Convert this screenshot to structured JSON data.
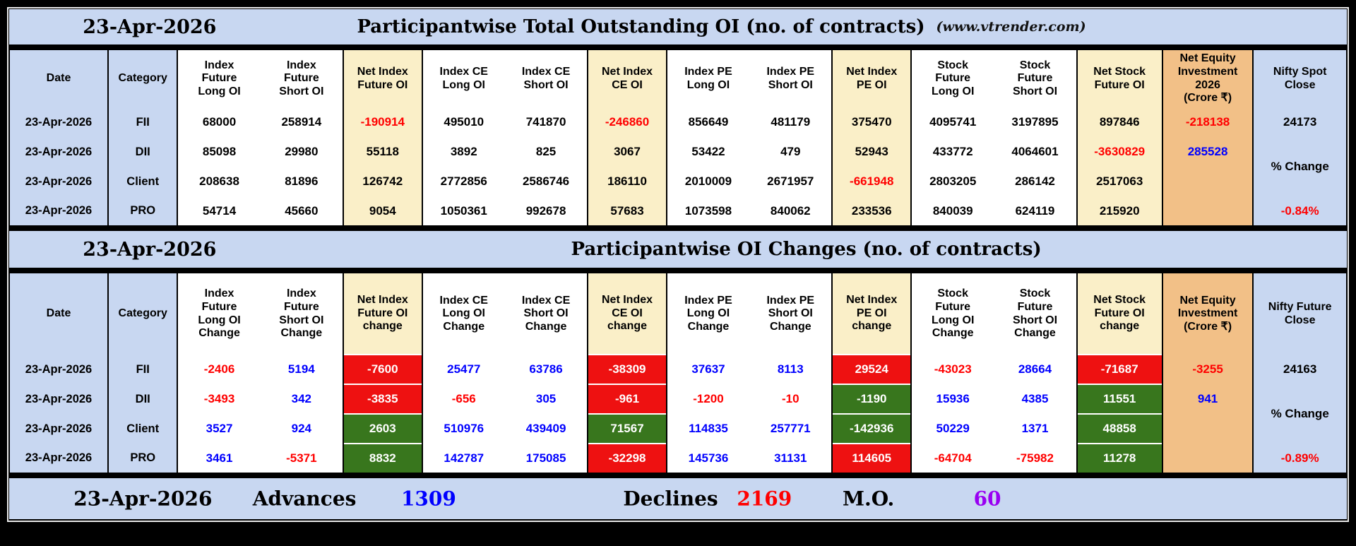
{
  "footer": {
    "date": "23-Apr-2026",
    "advances_label": "Advances",
    "advances_value": "1309",
    "declines_label": "Declines",
    "declines_value": "2169",
    "mo_label": "M.O.",
    "mo_value": "60"
  },
  "colors": {
    "light_blue": "#c8d7f1",
    "cream": "#faefc8",
    "orange": "#f2c087",
    "red_text": "#ff0000",
    "blue_text": "#0000ff",
    "red_bg": "#ee1111",
    "green_bg": "#38761d",
    "purple_text": "#9900f2"
  },
  "chart_data": [
    {
      "type": "table",
      "date": "23-Apr-2026",
      "title": "Participantwise Total Outstanding OI (no. of contracts)",
      "source": "(www.vtrender.com)",
      "columns": [
        "Date",
        "Category",
        "Index\nFuture\nLong OI",
        "Index\nFuture\nShort OI",
        "Net Index\nFuture OI",
        "Index CE\nLong OI",
        "Index CE\nShort OI",
        "Net Index\nCE OI",
        "Index PE\nLong OI",
        "Index PE\nShort OI",
        "Net Index\nPE OI",
        "Stock\nFuture\nLong OI",
        "Stock\nFuture\nShort OI",
        "Net Stock\nFuture OI",
        "Net Equity\nInvestment\n2026\n(Crore ₹)",
        "Nifty Spot\nClose"
      ],
      "rows": [
        {
          "date": "23-Apr-2026",
          "category": "FII",
          "values": [
            [
              "68000",
              "k"
            ],
            [
              "258914",
              "k"
            ],
            [
              "-190914",
              "r"
            ],
            [
              "495010",
              "k"
            ],
            [
              "741870",
              "k"
            ],
            [
              "-246860",
              "r"
            ],
            [
              "856649",
              "k"
            ],
            [
              "481179",
              "k"
            ],
            [
              "375470",
              "k"
            ],
            [
              "4095741",
              "k"
            ],
            [
              "3197895",
              "k"
            ],
            [
              "897846",
              "k"
            ],
            [
              "-218138",
              "r"
            ]
          ],
          "nifty": [
            "24173",
            "k"
          ]
        },
        {
          "date": "23-Apr-2026",
          "category": "DII",
          "values": [
            [
              "85098",
              "k"
            ],
            [
              "29980",
              "k"
            ],
            [
              "55118",
              "k"
            ],
            [
              "3892",
              "k"
            ],
            [
              "825",
              "k"
            ],
            [
              "3067",
              "k"
            ],
            [
              "53422",
              "k"
            ],
            [
              "479",
              "k"
            ],
            [
              "52943",
              "k"
            ],
            [
              "433772",
              "k"
            ],
            [
              "4064601",
              "k"
            ],
            [
              "-3630829",
              "r"
            ],
            [
              "285528",
              "b"
            ]
          ],
          "nifty": [
            "% Change",
            "k"
          ],
          "nifty_rowspan": 2
        },
        {
          "date": "23-Apr-2026",
          "category": "Client",
          "values": [
            [
              "208638",
              "k"
            ],
            [
              "81896",
              "k"
            ],
            [
              "126742",
              "k"
            ],
            [
              "2772856",
              "k"
            ],
            [
              "2586746",
              "k"
            ],
            [
              "186110",
              "k"
            ],
            [
              "2010009",
              "k"
            ],
            [
              "2671957",
              "k"
            ],
            [
              "-661948",
              "r"
            ],
            [
              "2803205",
              "k"
            ],
            [
              "286142",
              "k"
            ],
            [
              "2517063",
              "k"
            ],
            [
              "",
              "k"
            ]
          ],
          "nifty": null
        },
        {
          "date": "23-Apr-2026",
          "category": "PRO",
          "values": [
            [
              "54714",
              "k"
            ],
            [
              "45660",
              "k"
            ],
            [
              "9054",
              "k"
            ],
            [
              "1050361",
              "k"
            ],
            [
              "992678",
              "k"
            ],
            [
              "57683",
              "k"
            ],
            [
              "1073598",
              "k"
            ],
            [
              "840062",
              "k"
            ],
            [
              "233536",
              "k"
            ],
            [
              "840039",
              "k"
            ],
            [
              "624119",
              "k"
            ],
            [
              "215920",
              "k"
            ],
            [
              "",
              "k"
            ]
          ],
          "nifty": [
            "-0.84%",
            "r"
          ]
        }
      ]
    },
    {
      "type": "table",
      "date": "23-Apr-2026",
      "title": "Participantwise OI Changes (no. of contracts)",
      "columns": [
        "Date",
        "Category",
        "Index\nFuture\nLong OI\nChange",
        "Index\nFuture\nShort OI\nChange",
        "Net Index\nFuture OI\nchange",
        "Index CE\nLong OI\nChange",
        "Index CE\nShort OI\nChange",
        "Net Index\nCE OI\nchange",
        "Index PE\nLong OI\nChange",
        "Index PE\nShort OI\nChange",
        "Net Index\nPE OI\nchange",
        "Stock\nFuture\nLong OI\nChange",
        "Stock\nFuture\nShort OI\nChange",
        "Net Stock\nFuture OI\nchange",
        "Net Equity\nInvestment\n(Crore ₹)",
        "Nifty Future\nClose"
      ],
      "rows": [
        {
          "date": "23-Apr-2026",
          "category": "FII",
          "values": [
            [
              "-2406",
              "r"
            ],
            [
              "5194",
              "b"
            ],
            [
              "-7600",
              "wr"
            ],
            [
              "25477",
              "b"
            ],
            [
              "63786",
              "b"
            ],
            [
              "-38309",
              "wr"
            ],
            [
              "37637",
              "b"
            ],
            [
              "8113",
              "b"
            ],
            [
              "29524",
              "wr"
            ],
            [
              "-43023",
              "r"
            ],
            [
              "28664",
              "b"
            ],
            [
              "-71687",
              "wr"
            ],
            [
              "-3255",
              "r"
            ]
          ],
          "nifty": [
            "24163",
            "k"
          ]
        },
        {
          "date": "23-Apr-2026",
          "category": "DII",
          "values": [
            [
              "-3493",
              "r"
            ],
            [
              "342",
              "b"
            ],
            [
              "-3835",
              "wr"
            ],
            [
              "-656",
              "r"
            ],
            [
              "305",
              "b"
            ],
            [
              "-961",
              "wr"
            ],
            [
              "-1200",
              "r"
            ],
            [
              "-10",
              "r"
            ],
            [
              "-1190",
              "wg"
            ],
            [
              "15936",
              "b"
            ],
            [
              "4385",
              "b"
            ],
            [
              "11551",
              "wg"
            ],
            [
              "941",
              "b"
            ]
          ],
          "nifty": [
            "% Change",
            "k"
          ],
          "nifty_rowspan": 2
        },
        {
          "date": "23-Apr-2026",
          "category": "Client",
          "values": [
            [
              "3527",
              "b"
            ],
            [
              "924",
              "b"
            ],
            [
              "2603",
              "wg"
            ],
            [
              "510976",
              "b"
            ],
            [
              "439409",
              "b"
            ],
            [
              "71567",
              "wg"
            ],
            [
              "114835",
              "b"
            ],
            [
              "257771",
              "b"
            ],
            [
              "-142936",
              "wg"
            ],
            [
              "50229",
              "b"
            ],
            [
              "1371",
              "b"
            ],
            [
              "48858",
              "wg"
            ],
            [
              "",
              "k"
            ]
          ],
          "nifty": null
        },
        {
          "date": "23-Apr-2026",
          "category": "PRO",
          "values": [
            [
              "3461",
              "b"
            ],
            [
              "-5371",
              "r"
            ],
            [
              "8832",
              "wg"
            ],
            [
              "142787",
              "b"
            ],
            [
              "175085",
              "b"
            ],
            [
              "-32298",
              "wr"
            ],
            [
              "145736",
              "b"
            ],
            [
              "31131",
              "b"
            ],
            [
              "114605",
              "wr"
            ],
            [
              "-64704",
              "r"
            ],
            [
              "-75982",
              "r"
            ],
            [
              "11278",
              "wg"
            ],
            [
              "",
              "k"
            ]
          ],
          "nifty": [
            "-0.89%",
            "r"
          ]
        }
      ]
    }
  ]
}
